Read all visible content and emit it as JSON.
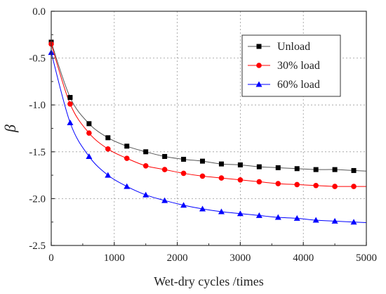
{
  "chart_data": {
    "type": "line",
    "xlabel": "Wet-dry cycles /times",
    "ylabel": "β",
    "xlim": [
      0,
      5000
    ],
    "ylim": [
      -2.5,
      0.0
    ],
    "x_ticks": [
      0,
      1000,
      2000,
      3000,
      4000,
      5000
    ],
    "y_ticks": [
      0.0,
      -0.5,
      -1.0,
      -1.5,
      -2.0,
      -2.5
    ],
    "y_tick_labels": [
      "0.0",
      "-0.5",
      "-1.0",
      "-1.5",
      "-2.0",
      "-2.5"
    ],
    "grid": true,
    "legend_position": "top-right",
    "x": [
      0,
      300,
      600,
      900,
      1200,
      1500,
      1800,
      2100,
      2400,
      2700,
      3000,
      3300,
      3600,
      3900,
      4200,
      4500,
      4800
    ],
    "series": [
      {
        "name": "Unload",
        "color": "#000000",
        "line_color": "#555555",
        "marker": "square",
        "values": [
          -0.33,
          -0.92,
          -1.2,
          -1.35,
          -1.44,
          -1.5,
          -1.55,
          -1.58,
          -1.6,
          -1.63,
          -1.64,
          -1.66,
          -1.67,
          -1.68,
          -1.69,
          -1.69,
          -1.7
        ]
      },
      {
        "name": "30% load",
        "color": "#ff0000",
        "line_color": "#ff0000",
        "marker": "circle",
        "values": [
          -0.35,
          -0.99,
          -1.3,
          -1.47,
          -1.57,
          -1.65,
          -1.69,
          -1.73,
          -1.76,
          -1.78,
          -1.8,
          -1.82,
          -1.84,
          -1.85,
          -1.86,
          -1.87,
          -1.87
        ]
      },
      {
        "name": "60% load",
        "color": "#0000ff",
        "line_color": "#0000ff",
        "marker": "triangle",
        "values": [
          -0.44,
          -1.19,
          -1.55,
          -1.75,
          -1.87,
          -1.96,
          -2.02,
          -2.07,
          -2.11,
          -2.14,
          -2.16,
          -2.18,
          -2.2,
          -2.21,
          -2.23,
          -2.24,
          -2.25
        ]
      }
    ]
  }
}
